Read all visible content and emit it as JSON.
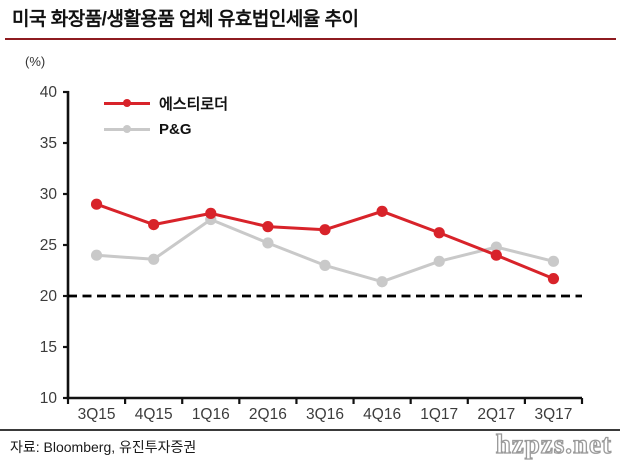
{
  "chart_data": {
    "type": "line",
    "title": "미국 화장품/생활용품 업체 유효법인세율 추이",
    "unit_label": "(%)",
    "categories": [
      "3Q15",
      "4Q15",
      "1Q16",
      "2Q16",
      "3Q16",
      "4Q16",
      "1Q17",
      "2Q17",
      "3Q17"
    ],
    "series": [
      {
        "name": "에스티로더",
        "color": "#d8232a",
        "values": [
          29.0,
          27.0,
          28.1,
          26.8,
          26.5,
          28.3,
          26.2,
          24.0,
          21.7
        ]
      },
      {
        "name": "P&G",
        "color": "#c9c9c9",
        "values": [
          24.0,
          23.6,
          27.5,
          25.2,
          23.0,
          21.4,
          23.4,
          24.8,
          23.4
        ]
      }
    ],
    "ylim": [
      10,
      40
    ],
    "ytick_step": 5,
    "yticks": [
      10,
      15,
      20,
      25,
      30,
      35,
      40
    ],
    "reference_line": {
      "value": 20,
      "style": "dashed",
      "color": "#000000"
    },
    "legend_position": "top-left",
    "grid": false,
    "axis_color": "#111111"
  },
  "footer": {
    "source": "자료: Bloomberg, 유진투자증권",
    "watermark": "hzpzs.net"
  },
  "colors": {
    "title_rule": "#8e1b20",
    "tick_label": "#3c3c3c"
  }
}
